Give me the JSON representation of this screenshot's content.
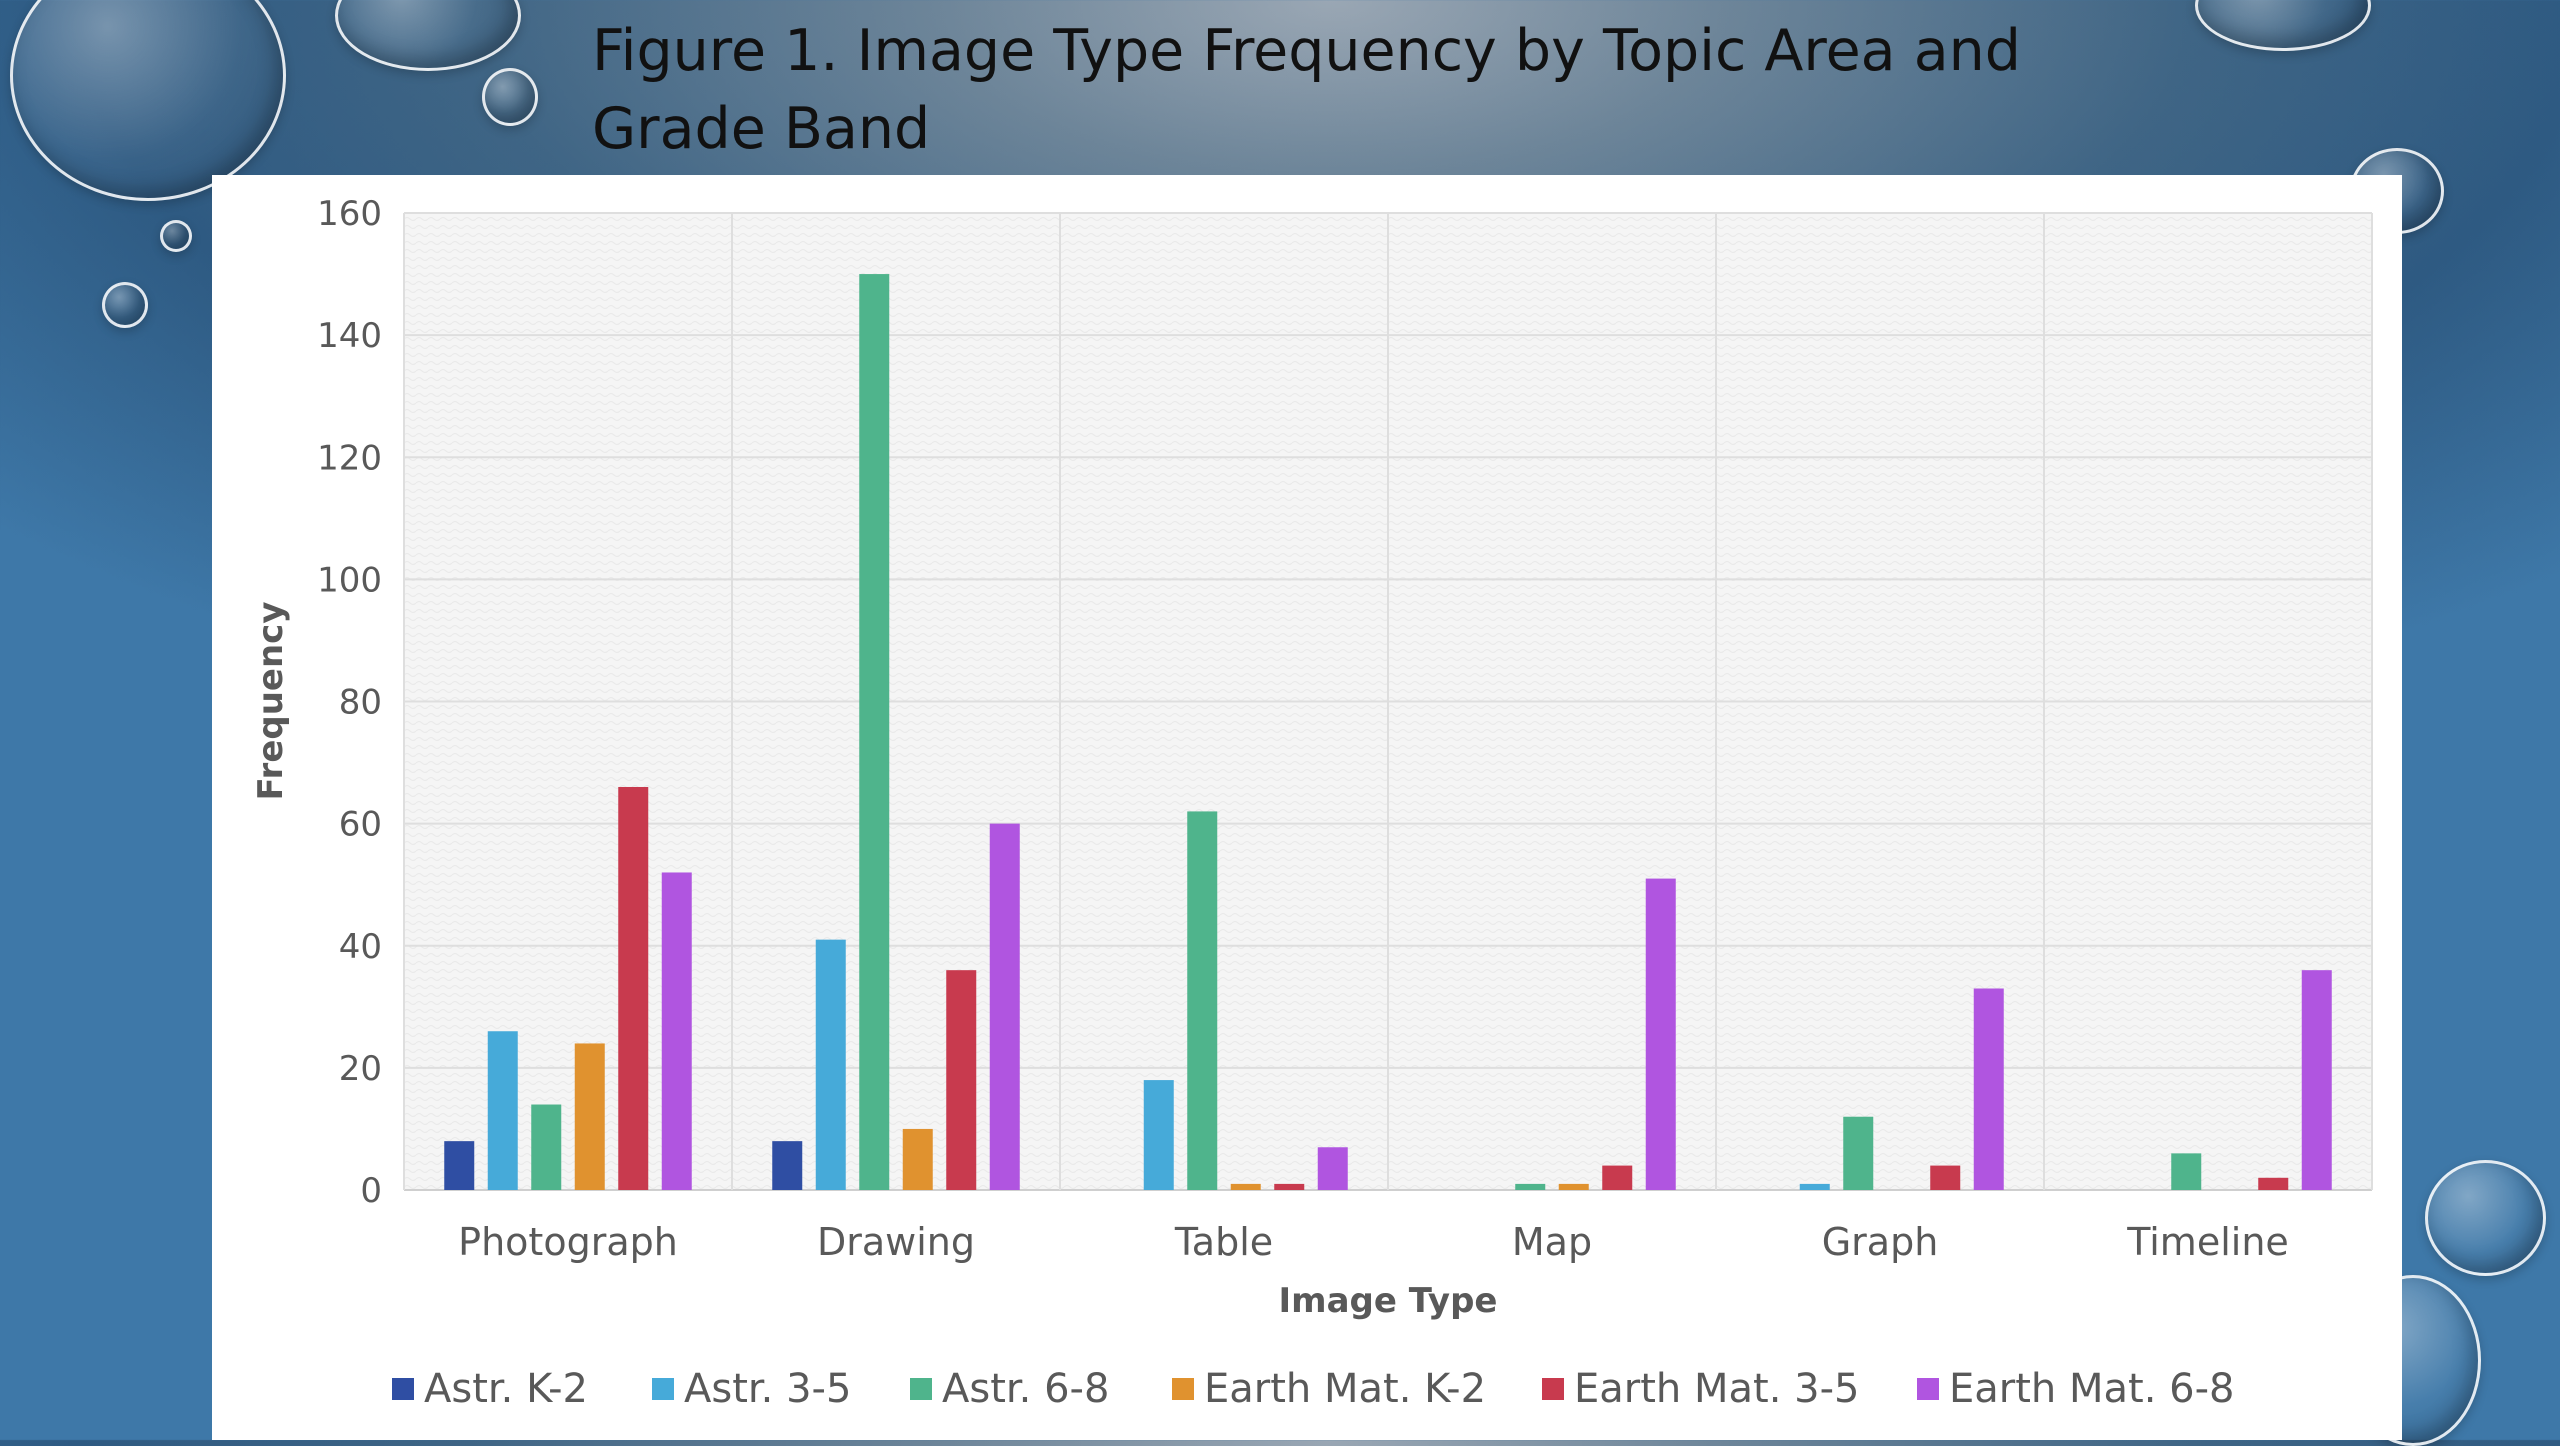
{
  "slide": {
    "title": "Figure 1. Image Type Frequency by Topic Area and Grade Band"
  },
  "chart_data": {
    "type": "bar",
    "title": "Figure 1. Image Type Frequency by Topic Area and Grade Band",
    "xlabel": "Image Type",
    "ylabel": "Frequency",
    "ylim": [
      0,
      160
    ],
    "yticks": [
      0,
      20,
      40,
      60,
      80,
      100,
      120,
      140,
      160
    ],
    "categories": [
      "Photograph",
      "Drawing",
      "Table",
      "Map",
      "Graph",
      "Timeline"
    ],
    "grid": true,
    "legend_position": "bottom",
    "series": [
      {
        "name": "Astr. K-2",
        "color": "#2f4ea3",
        "values": [
          8,
          8,
          0,
          0,
          0,
          0
        ]
      },
      {
        "name": "Astr. 3-5",
        "color": "#46aad9",
        "values": [
          26,
          41,
          18,
          0,
          1,
          0
        ]
      },
      {
        "name": "Astr. 6-8",
        "color": "#4fb48c",
        "values": [
          14,
          150,
          62,
          1,
          12,
          6
        ]
      },
      {
        "name": "Earth Mat. K-2",
        "color": "#e0922f",
        "values": [
          24,
          10,
          1,
          1,
          0,
          0
        ]
      },
      {
        "name": "Earth Mat. 3-5",
        "color": "#c83a4e",
        "values": [
          66,
          36,
          1,
          4,
          4,
          2
        ]
      },
      {
        "name": "Earth Mat. 6-8",
        "color": "#b055e0",
        "values": [
          52,
          60,
          7,
          51,
          33,
          36
        ]
      }
    ]
  }
}
